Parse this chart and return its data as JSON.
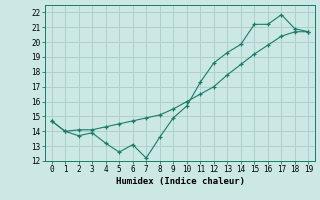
{
  "xlabel": "Humidex (Indice chaleur)",
  "bg_color": "#cce8e4",
  "grid_color": "#aed0cb",
  "line_color": "#1a7a6a",
  "xlim": [
    -0.5,
    19.5
  ],
  "ylim": [
    12,
    22.5
  ],
  "xticks": [
    0,
    1,
    2,
    3,
    4,
    5,
    6,
    7,
    8,
    9,
    10,
    11,
    12,
    13,
    14,
    15,
    16,
    17,
    18,
    19
  ],
  "yticks": [
    12,
    13,
    14,
    15,
    16,
    17,
    18,
    19,
    20,
    21,
    22
  ],
  "line1_x": [
    0,
    1,
    2,
    3,
    4,
    5,
    6,
    7,
    8,
    9,
    10,
    11,
    12,
    13,
    14,
    15,
    16,
    17,
    18,
    19
  ],
  "line1_y": [
    14.7,
    14.0,
    13.7,
    13.9,
    13.2,
    12.6,
    13.1,
    12.2,
    13.6,
    14.9,
    15.7,
    17.3,
    18.6,
    19.3,
    19.85,
    21.2,
    21.2,
    21.85,
    20.9,
    20.7
  ],
  "line2_x": [
    0,
    1,
    2,
    3,
    4,
    5,
    6,
    7,
    8,
    9,
    10,
    11,
    12,
    13,
    14,
    15,
    16,
    17,
    18,
    19
  ],
  "line2_y": [
    14.7,
    14.0,
    14.1,
    14.1,
    14.3,
    14.5,
    14.7,
    14.9,
    15.1,
    15.5,
    16.0,
    16.5,
    17.0,
    17.8,
    18.5,
    19.2,
    19.8,
    20.4,
    20.7,
    20.7
  ]
}
